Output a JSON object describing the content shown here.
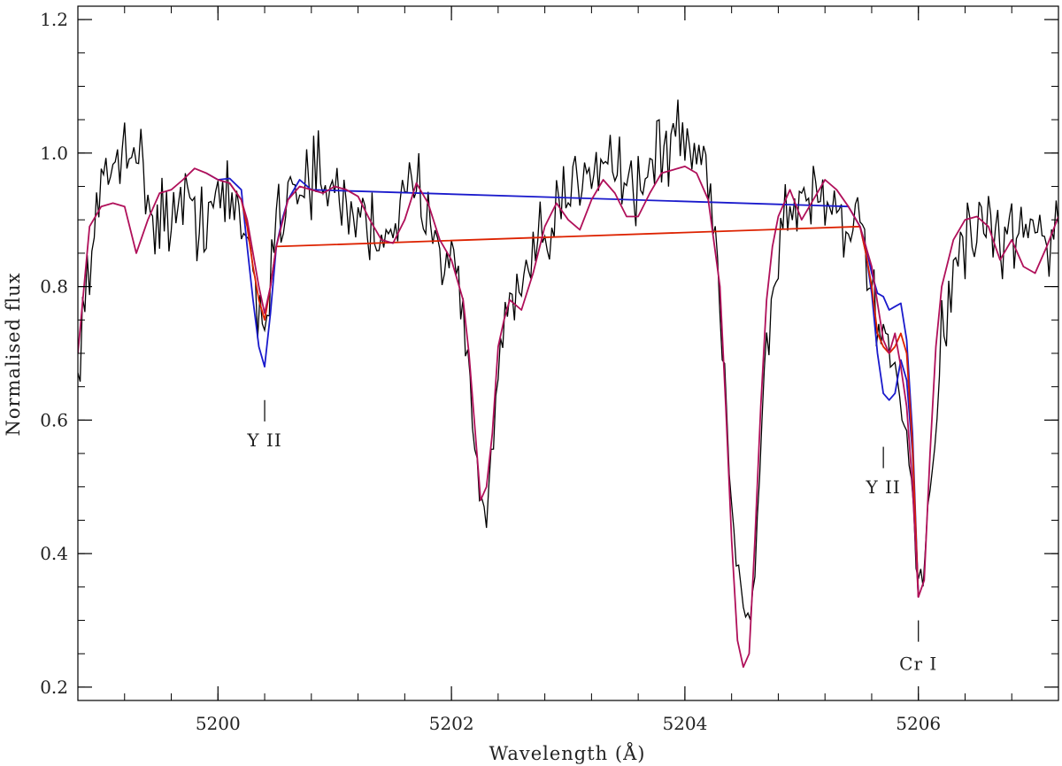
{
  "chart_data": {
    "type": "line",
    "xlabel": "Wavelength (Å)",
    "ylabel": "Normalised flux",
    "xlim": [
      5198.8,
      5207.2
    ],
    "ylim": [
      0.18,
      1.22
    ],
    "x_major_ticks": [
      5200,
      5202,
      5204,
      5206
    ],
    "x_minor_step": 0.4,
    "y_major_ticks": [
      0.2,
      0.4,
      0.6,
      0.8,
      1.0,
      1.2
    ],
    "y_minor_step": 0.05,
    "x_tick_labels": [
      "5200",
      "5202",
      "5204",
      "5206"
    ],
    "y_tick_labels": [
      "0.2",
      "0.4",
      "0.6",
      "0.8",
      "1.0",
      "1.2"
    ],
    "grid": false,
    "colors": {
      "observed": "#000000",
      "model_blue": "#1a1acc",
      "model_red": "#dd2200",
      "model_purple": "#b0105a"
    },
    "annotations": [
      {
        "text": "Y II",
        "x": 5200.4,
        "tick_y": [
          0.598,
          0.63
        ],
        "label_y": 0.57
      },
      {
        "text": "Y II",
        "x": 5205.7,
        "tick_y": [
          0.528,
          0.56
        ],
        "label_y": 0.5
      },
      {
        "text": "Cr I",
        "x": 5206.0,
        "tick_y": [
          0.268,
          0.3
        ],
        "label_y": 0.235
      }
    ],
    "model_series": [
      {
        "key": "purple",
        "x": [
          5198.8,
          5198.9,
          5199.0,
          5199.1,
          5199.2,
          5199.3,
          5199.4,
          5199.5,
          5199.6,
          5199.7,
          5199.8,
          5199.9,
          5200.0,
          5200.1,
          5200.2,
          5200.25,
          5200.3,
          5200.35,
          5200.4,
          5200.45,
          5200.5,
          5200.6,
          5200.7,
          5200.8,
          5200.9,
          5201.0,
          5201.1,
          5201.2,
          5201.3,
          5201.4,
          5201.5,
          5201.6,
          5201.7,
          5201.8,
          5201.9,
          5202.0,
          5202.1,
          5202.15,
          5202.2,
          5202.25,
          5202.3,
          5202.35,
          5202.4,
          5202.45,
          5202.5,
          5202.6,
          5202.7,
          5202.8,
          5202.9,
          5203.0,
          5203.1,
          5203.2,
          5203.3,
          5203.4,
          5203.5,
          5203.6,
          5203.7,
          5203.8,
          5203.9,
          5204.0,
          5204.1,
          5204.2,
          5204.3,
          5204.35,
          5204.4,
          5204.45,
          5204.5,
          5204.55,
          5204.6,
          5204.65,
          5204.7,
          5204.75,
          5204.8,
          5204.9,
          5205.0,
          5205.1,
          5205.2,
          5205.3,
          5205.4,
          5205.5,
          5205.6,
          5205.7,
          5205.75,
          5205.8,
          5205.85,
          5205.9,
          5205.95,
          5206.0,
          5206.05,
          5206.1,
          5206.15,
          5206.2,
          5206.3,
          5206.4,
          5206.5,
          5206.6,
          5206.7,
          5206.8,
          5206.9,
          5207.0,
          5207.1,
          5207.2
        ],
        "y": [
          0.7,
          0.89,
          0.92,
          0.925,
          0.92,
          0.85,
          0.9,
          0.94,
          0.945,
          0.96,
          0.977,
          0.97,
          0.96,
          0.955,
          0.93,
          0.9,
          0.85,
          0.8,
          0.76,
          0.8,
          0.86,
          0.93,
          0.95,
          0.945,
          0.94,
          0.95,
          0.945,
          0.935,
          0.9,
          0.87,
          0.865,
          0.9,
          0.955,
          0.925,
          0.87,
          0.84,
          0.78,
          0.7,
          0.59,
          0.48,
          0.5,
          0.58,
          0.71,
          0.75,
          0.78,
          0.765,
          0.82,
          0.89,
          0.925,
          0.9,
          0.885,
          0.93,
          0.96,
          0.94,
          0.905,
          0.905,
          0.94,
          0.97,
          0.975,
          0.98,
          0.97,
          0.93,
          0.8,
          0.62,
          0.42,
          0.27,
          0.23,
          0.25,
          0.42,
          0.62,
          0.78,
          0.86,
          0.905,
          0.945,
          0.9,
          0.93,
          0.96,
          0.945,
          0.92,
          0.89,
          0.83,
          0.72,
          0.7,
          0.73,
          0.68,
          0.62,
          0.5,
          0.335,
          0.36,
          0.55,
          0.71,
          0.8,
          0.87,
          0.9,
          0.905,
          0.89,
          0.84,
          0.87,
          0.83,
          0.82,
          0.86,
          0.905
        ]
      },
      {
        "key": "blue",
        "x": [
          5199.9,
          5200.0,
          5200.1,
          5200.2,
          5200.25,
          5200.3,
          5200.35,
          5200.4,
          5200.45,
          5200.5,
          5200.55,
          5200.6,
          5200.7,
          5200.8,
          5205.4,
          5205.5,
          5205.55,
          5205.6,
          5205.65,
          5205.7,
          5205.75,
          5205.8,
          5205.85,
          5205.9,
          5205.95,
          5206.0
        ],
        "y": [
          0.97,
          0.96,
          0.962,
          0.945,
          0.86,
          0.78,
          0.71,
          0.68,
          0.76,
          0.86,
          0.9,
          0.93,
          0.96,
          0.945,
          0.92,
          0.89,
          0.85,
          0.79,
          0.7,
          0.64,
          0.63,
          0.64,
          0.69,
          0.66,
          0.55,
          0.335
        ]
      },
      {
        "key": "blue2",
        "x": [
          5205.5,
          5205.55,
          5205.6,
          5205.65,
          5205.7,
          5205.75,
          5205.8,
          5205.85,
          5205.9,
          5205.95,
          5206.0
        ],
        "y": [
          0.89,
          0.86,
          0.82,
          0.79,
          0.785,
          0.765,
          0.77,
          0.775,
          0.72,
          0.58,
          0.335
        ]
      },
      {
        "key": "red",
        "x": [
          5200.1,
          5200.2,
          5200.25,
          5200.3,
          5200.35,
          5200.4,
          5200.45,
          5200.5,
          5205.5,
          5205.55,
          5205.6,
          5205.65,
          5205.7,
          5205.75,
          5205.8,
          5205.85,
          5205.9,
          5205.95,
          5206.0
        ],
        "y": [
          0.955,
          0.93,
          0.89,
          0.83,
          0.78,
          0.75,
          0.8,
          0.86,
          0.89,
          0.85,
          0.8,
          0.73,
          0.71,
          0.7,
          0.71,
          0.73,
          0.7,
          0.56,
          0.335
        ]
      }
    ],
    "observed_anchors": {
      "x": [
        5198.8,
        5198.9,
        5199.0,
        5199.1,
        5199.2,
        5199.25,
        5199.3,
        5199.4,
        5199.5,
        5199.6,
        5199.7,
        5199.8,
        5199.9,
        5200.0,
        5200.1,
        5200.2,
        5200.3,
        5200.35,
        5200.4,
        5200.45,
        5200.5,
        5200.6,
        5200.7,
        5200.8,
        5200.9,
        5201.0,
        5201.1,
        5201.2,
        5201.3,
        5201.4,
        5201.5,
        5201.6,
        5201.7,
        5201.8,
        5201.9,
        5202.0,
        5202.1,
        5202.15,
        5202.2,
        5202.25,
        5202.3,
        5202.35,
        5202.4,
        5202.5,
        5202.6,
        5202.7,
        5202.8,
        5202.9,
        5203.0,
        5203.1,
        5203.2,
        5203.3,
        5203.4,
        5203.5,
        5203.6,
        5203.7,
        5203.8,
        5203.9,
        5204.0,
        5204.1,
        5204.2,
        5204.3,
        5204.35,
        5204.4,
        5204.45,
        5204.5,
        5204.55,
        5204.6,
        5204.65,
        5204.7,
        5204.8,
        5204.9,
        5205.0,
        5205.1,
        5205.2,
        5205.3,
        5205.4,
        5205.5,
        5205.6,
        5205.7,
        5205.8,
        5205.9,
        5205.95,
        5206.0,
        5206.05,
        5206.1,
        5206.2,
        5206.3,
        5206.4,
        5206.5,
        5206.6,
        5206.7,
        5206.8,
        5206.9,
        5207.0,
        5207.1,
        5207.2
      ],
      "y": [
        0.66,
        0.85,
        0.93,
        0.98,
        1.02,
        1.04,
        1.0,
        0.93,
        0.9,
        0.91,
        0.92,
        0.9,
        0.92,
        0.93,
        0.92,
        0.9,
        0.83,
        0.76,
        0.75,
        0.82,
        0.9,
        0.95,
        0.96,
        0.97,
        0.95,
        0.93,
        0.92,
        0.91,
        0.89,
        0.88,
        0.9,
        0.92,
        0.94,
        0.93,
        0.88,
        0.83,
        0.76,
        0.68,
        0.57,
        0.47,
        0.46,
        0.55,
        0.68,
        0.76,
        0.8,
        0.82,
        0.86,
        0.9,
        0.93,
        0.97,
        1.0,
        1.0,
        0.99,
        0.96,
        0.95,
        0.98,
        1.0,
        1.02,
        1.02,
        1.0,
        0.96,
        0.8,
        0.64,
        0.48,
        0.38,
        0.32,
        0.3,
        0.38,
        0.56,
        0.72,
        0.86,
        0.92,
        0.93,
        0.94,
        0.94,
        0.92,
        0.9,
        0.87,
        0.79,
        0.72,
        0.66,
        0.58,
        0.45,
        0.37,
        0.38,
        0.5,
        0.7,
        0.82,
        0.86,
        0.88,
        0.87,
        0.86,
        0.88,
        0.87,
        0.89,
        0.88,
        0.9
      ]
    },
    "observed_step": 0.02,
    "observed_noise": 0.032
  }
}
